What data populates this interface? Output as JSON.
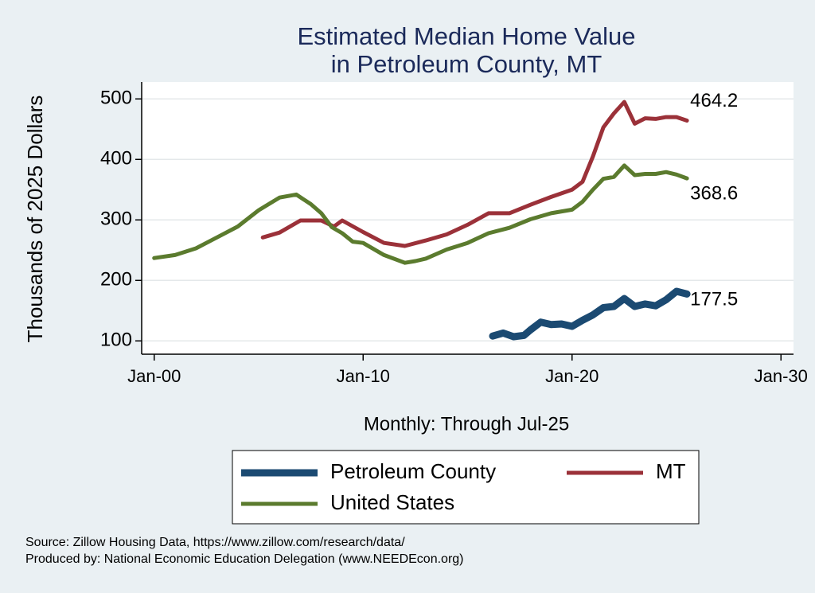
{
  "chart_data": {
    "type": "line",
    "title": [
      "Estimated Median Home Value",
      "in Petroleum County, MT"
    ],
    "x_label": "Monthly: Through Jul-25",
    "y_label": "Thousands of 2025 Dollars",
    "source": [
      "Source: Zillow Housing Data, https://www.zillow.com/research/data/",
      "Produced by: National Economic Education Delegation (www.NEEDEcon.org)"
    ],
    "xlim": [
      1999.4,
      2030.6
    ],
    "ylim": [
      78,
      528
    ],
    "xticks": [
      {
        "value": 2000,
        "label": "Jan-00"
      },
      {
        "value": 2010,
        "label": "Jan-10"
      },
      {
        "value": 2020,
        "label": "Jan-20"
      },
      {
        "value": 2030,
        "label": "Jan-30"
      }
    ],
    "yticks": [
      100,
      200,
      300,
      400,
      500
    ],
    "grid": true,
    "series": [
      {
        "name": "Petroleum County",
        "color": "#1b4a72",
        "x": [
          2016.2,
          2016.7,
          2017.2,
          2017.7,
          2018,
          2018.5,
          2019,
          2019.5,
          2020,
          2020.5,
          2021,
          2021.5,
          2022,
          2022.5,
          2023,
          2023.5,
          2024,
          2024.5,
          2025,
          2025.5
        ],
        "values": [
          108,
          113,
          107,
          109,
          118,
          131,
          127,
          128,
          124,
          134,
          143,
          155,
          157,
          170,
          157,
          161,
          158,
          168,
          182,
          177.5
        ]
      },
      {
        "name": "MT",
        "color": "#9b3139",
        "x": [
          2005.2,
          2006,
          2007,
          2008,
          2008.6,
          2009,
          2010,
          2011,
          2012,
          2013,
          2014,
          2015,
          2016,
          2017,
          2018,
          2019,
          2020,
          2020.5,
          2021,
          2021.5,
          2022,
          2022.5,
          2023,
          2023.5,
          2024,
          2024.5,
          2025,
          2025.5
        ],
        "values": [
          271,
          279,
          299,
          299,
          289,
          299,
          280,
          262,
          257,
          266,
          276,
          292,
          311,
          311,
          325,
          338,
          350,
          363,
          405,
          453,
          476,
          495,
          459,
          468,
          467,
          470,
          470,
          464.2
        ]
      },
      {
        "name": "United States",
        "color": "#5b7b2e",
        "x": [
          2000,
          2001,
          2002,
          2003,
          2004,
          2005,
          2006,
          2006.8,
          2007.5,
          2008,
          2008.5,
          2009,
          2009.5,
          2010,
          2011,
          2012,
          2012.5,
          2013,
          2014,
          2015,
          2016,
          2017,
          2018,
          2019,
          2020,
          2020.5,
          2021,
          2021.5,
          2022,
          2022.5,
          2023,
          2023.5,
          2024,
          2024.5,
          2025,
          2025.5
        ],
        "values": [
          237,
          242,
          253,
          271,
          289,
          316,
          337,
          342,
          326,
          311,
          288,
          278,
          264,
          262,
          242,
          229,
          232,
          236,
          251,
          262,
          278,
          287,
          301,
          311,
          317,
          330,
          350,
          368,
          371,
          390,
          374,
          376,
          376,
          379,
          375,
          368.6
        ]
      }
    ]
  }
}
